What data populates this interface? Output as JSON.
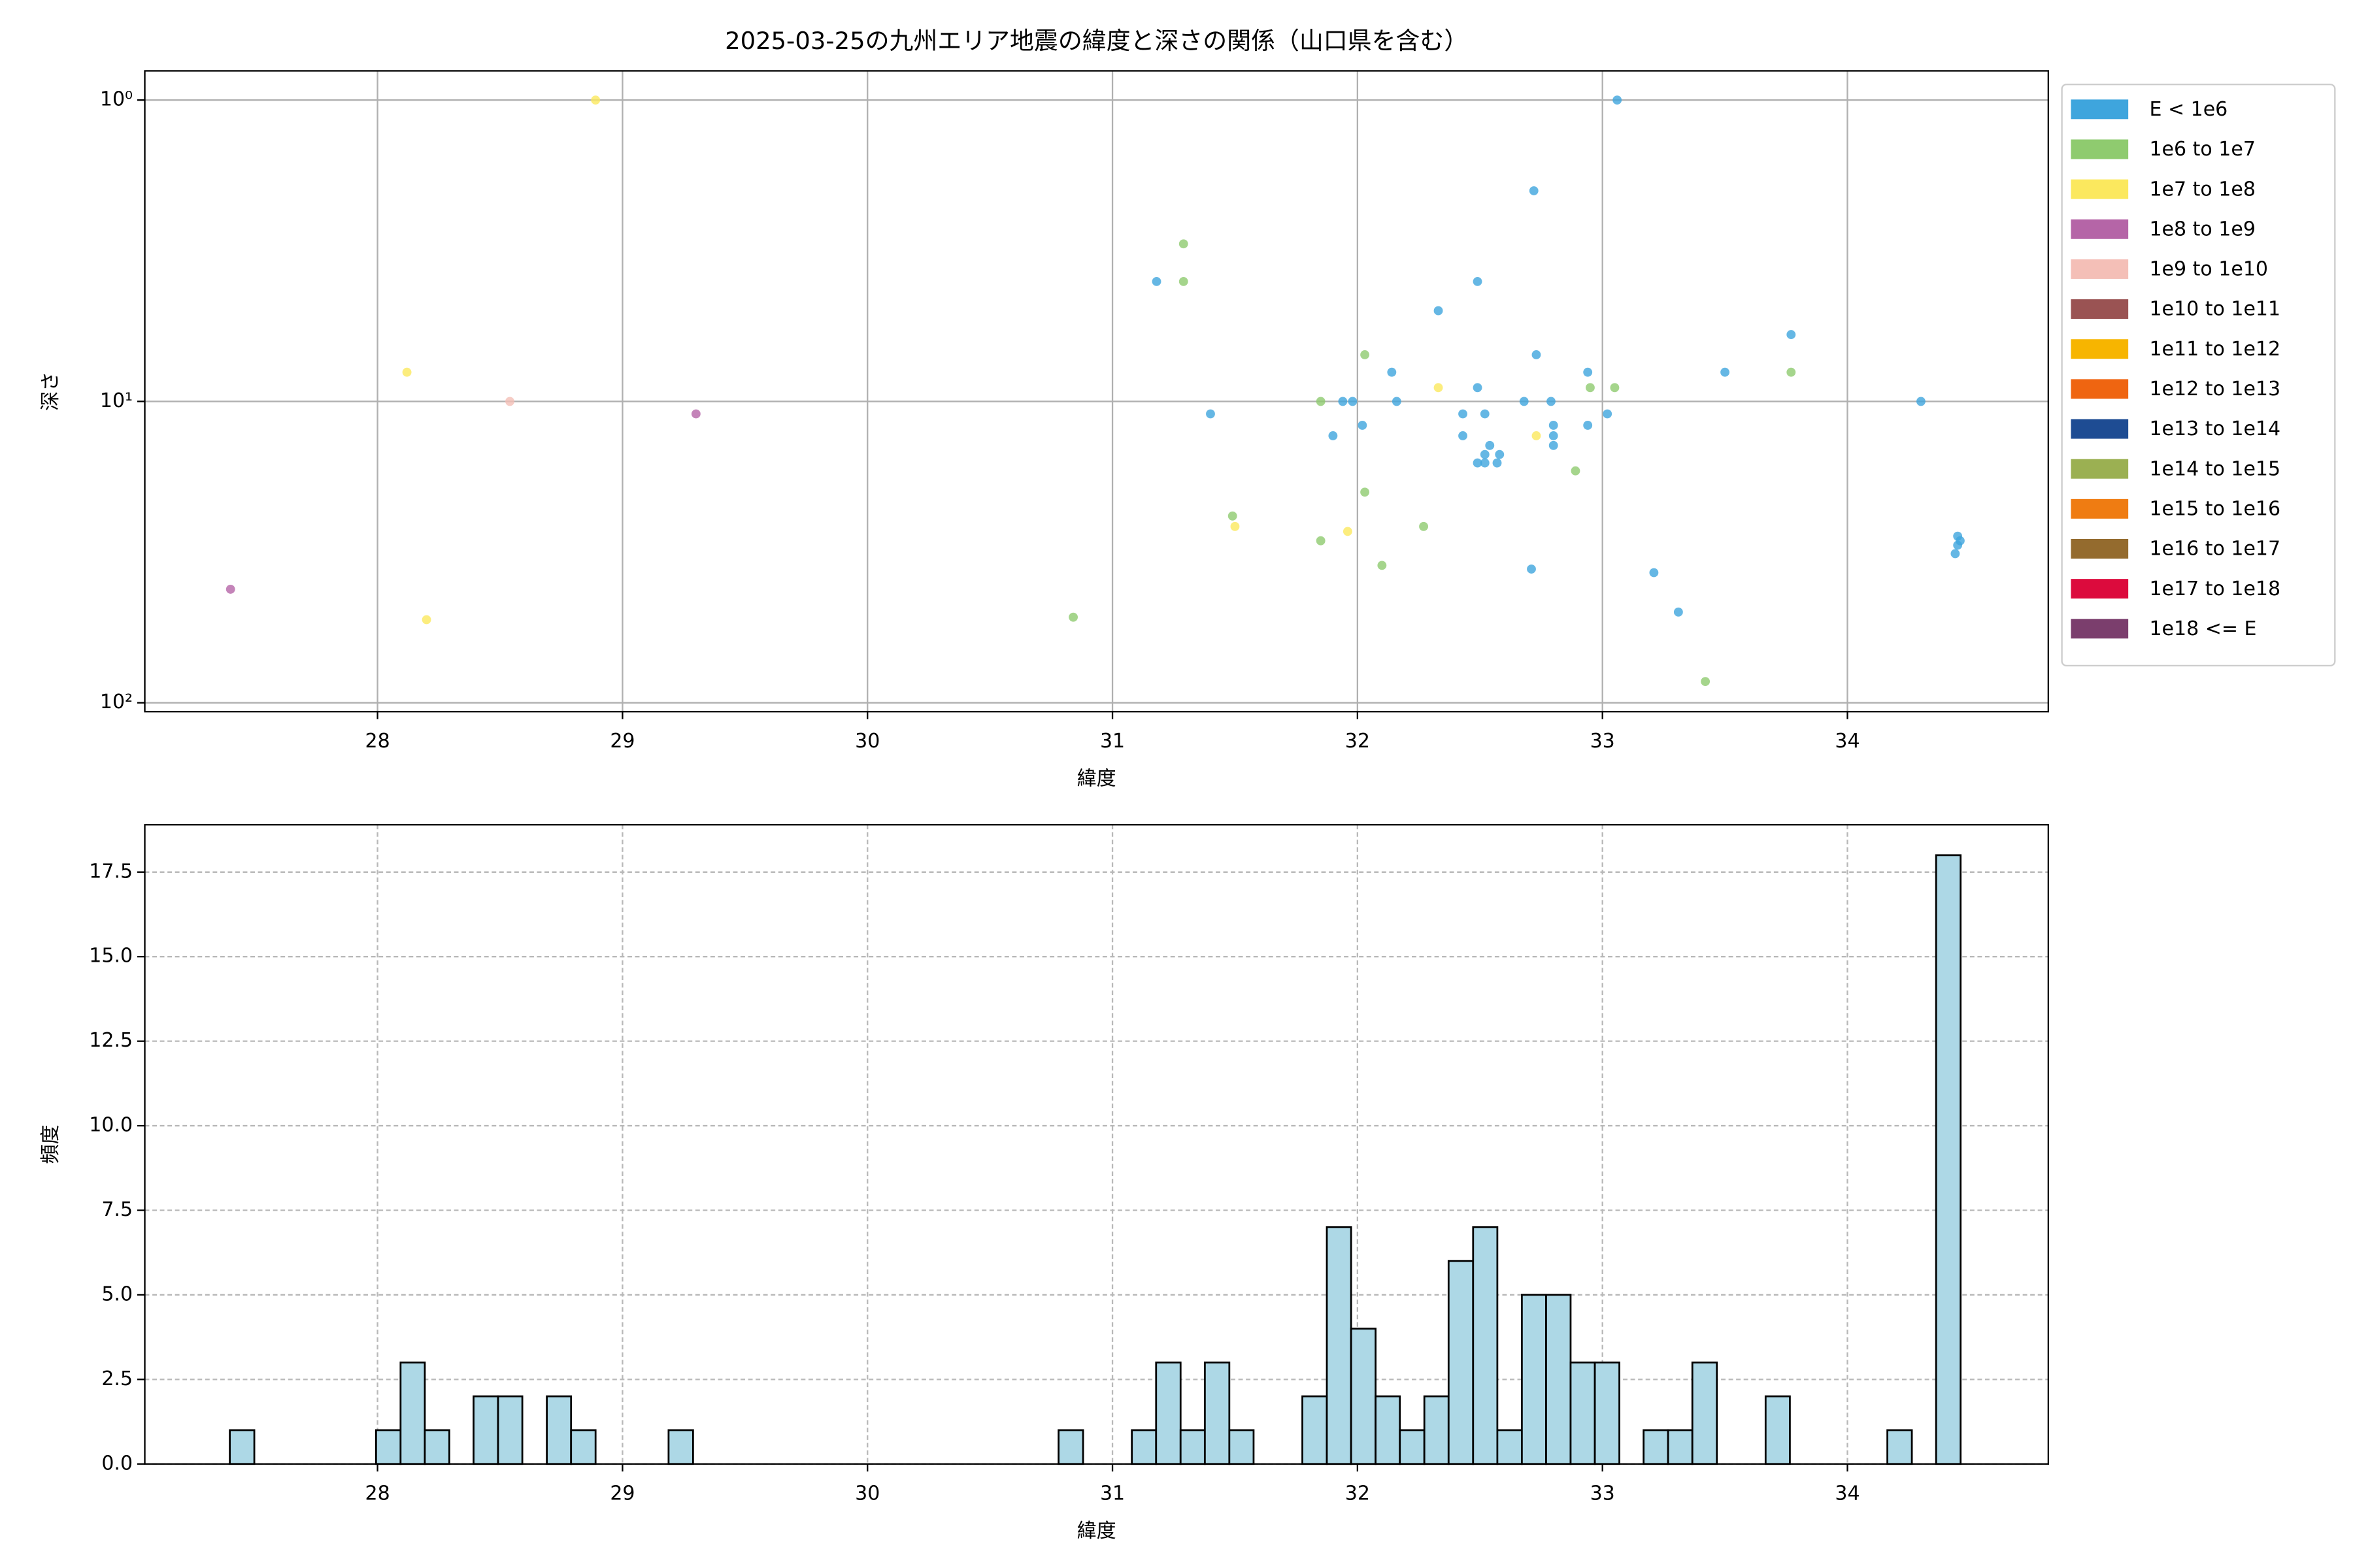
{
  "chart_data": [
    {
      "type": "scatter",
      "title": "2025-03-25の九州エリア地震の緯度と深さの関係（山口県を含む）",
      "x_label": "緯度",
      "y_label": "深さ",
      "xlim": [
        27.05,
        34.82
      ],
      "xticks": [
        28,
        29,
        30,
        31,
        32,
        33,
        34
      ],
      "ylim": [
        107,
        0.8
      ],
      "ylog": true,
      "yticks": [
        {
          "value": 1,
          "label": "10⁰"
        },
        {
          "value": 10,
          "label": "10¹"
        },
        {
          "value": 100,
          "label": "10²"
        }
      ],
      "grid": true,
      "legend": "outside right",
      "series": [
        {
          "name": "E < 1e6",
          "color": "#3ea5dd",
          "x": [
            33.06,
            32.72,
            31.18,
            32.49,
            32.33,
            33.77,
            32.73,
            32.14,
            32.94,
            33.5,
            32.49,
            31.94,
            31.98,
            32.16,
            32.68,
            32.79,
            34.3,
            31.4,
            32.43,
            32.52,
            33.02,
            32.02,
            32.94,
            32.8,
            31.9,
            32.43,
            32.8,
            32.8,
            32.54,
            32.52,
            32.58,
            32.49,
            32.52,
            32.57,
            32.71,
            33.21,
            33.31,
            34.45,
            34.45,
            34.44,
            34.46
          ],
          "values": [
            1,
            2,
            4,
            4,
            5,
            6,
            7,
            8,
            8,
            8,
            9,
            10,
            10,
            10,
            10,
            10,
            10,
            11,
            11,
            11,
            11,
            12,
            12,
            12,
            13,
            13,
            13,
            14,
            14,
            15,
            15,
            16,
            16,
            16,
            36,
            37,
            50,
            28,
            30,
            32,
            29
          ]
        },
        {
          "name": "1e6 to 1e7",
          "color": "#8fcb6f",
          "x": [
            31.29,
            31.29,
            32.03,
            33.77,
            31.85,
            32.95,
            33.05,
            32.89,
            32.03,
            31.49,
            32.27,
            31.85,
            32.1,
            30.84,
            33.42
          ],
          "values": [
            3,
            4,
            7,
            8,
            10,
            9,
            9,
            17,
            20,
            24,
            26,
            29,
            35,
            52,
            85
          ]
        },
        {
          "name": "1e7 to 1e8",
          "color": "#fbe85e",
          "x": [
            28.89,
            28.12,
            32.33,
            32.73,
            31.5,
            31.96,
            28.2
          ],
          "values": [
            1,
            8,
            9,
            13,
            26,
            27,
            53
          ]
        },
        {
          "name": "1e8 to 1e9",
          "color": "#b565a7",
          "x": [
            29.3,
            27.4
          ],
          "values": [
            11,
            42
          ]
        },
        {
          "name": "1e9 to 1e10",
          "color": "#f4bfb7",
          "x": [
            28.54
          ],
          "values": [
            10
          ]
        },
        {
          "name": "1e10 to 1e11",
          "color": "#9a5353",
          "x": [],
          "values": []
        },
        {
          "name": "1e11 to 1e12",
          "color": "#f7b500",
          "x": [],
          "values": []
        },
        {
          "name": "1e12 to 1e13",
          "color": "#ef6511",
          "x": [],
          "values": []
        },
        {
          "name": "1e13 to 1e14",
          "color": "#1e4c93",
          "x": [],
          "values": []
        },
        {
          "name": "1e14 to 1e15",
          "color": "#9bb052",
          "x": [],
          "values": []
        },
        {
          "name": "1e15 to 1e16",
          "color": "#ef7c12",
          "x": [],
          "values": []
        },
        {
          "name": "1e16 to 1e17",
          "color": "#946b2e",
          "x": [],
          "values": []
        },
        {
          "name": "1e17 to 1e18",
          "color": "#dc0b3d",
          "x": [],
          "values": []
        },
        {
          "name": "1e18 <= E",
          "color": "#7b3e6d",
          "x": [],
          "values": []
        }
      ]
    },
    {
      "type": "histogram",
      "x_label": "緯度",
      "y_label": "頻度",
      "xlim": [
        27.05,
        34.82
      ],
      "xticks": [
        28,
        29,
        30,
        31,
        32,
        33,
        34
      ],
      "ylim": [
        0,
        18.9
      ],
      "yticks": [
        {
          "value": 0,
          "label": "0.0"
        },
        {
          "value": 2.5,
          "label": "2.5"
        },
        {
          "value": 5,
          "label": "5.0"
        },
        {
          "value": 7.5,
          "label": "7.5"
        },
        {
          "value": 10,
          "label": "10.0"
        },
        {
          "value": 12.5,
          "label": "12.5"
        },
        {
          "value": 15,
          "label": "15.0"
        },
        {
          "value": 17.5,
          "label": "17.5"
        }
      ],
      "grid": "dashed",
      "color": "#add8e6",
      "edgecolor": "#000000",
      "bins": [
        27.397,
        27.497,
        27.596,
        27.696,
        27.795,
        27.895,
        27.994,
        28.094,
        28.193,
        28.293,
        28.392,
        28.492,
        28.591,
        28.691,
        28.79,
        28.89,
        28.989,
        29.089,
        29.188,
        29.288,
        29.387,
        29.487,
        29.586,
        29.686,
        29.785,
        29.885,
        29.984,
        30.084,
        30.183,
        30.283,
        30.382,
        30.482,
        30.581,
        30.681,
        30.78,
        30.88,
        30.979,
        31.079,
        31.178,
        31.278,
        31.377,
        31.477,
        31.576,
        31.676,
        31.775,
        31.875,
        31.974,
        32.074,
        32.173,
        32.273,
        32.372,
        32.472,
        32.571,
        32.671,
        32.77,
        32.87,
        32.969,
        33.069,
        33.168,
        33.268,
        33.367,
        33.467,
        33.566,
        33.666,
        33.765,
        33.865,
        33.964,
        34.064,
        34.163,
        34.263,
        34.362,
        34.462
      ],
      "values": [
        1,
        0,
        0,
        0,
        0,
        0,
        1,
        3,
        1,
        0,
        2,
        2,
        0,
        2,
        1,
        0,
        0,
        0,
        1,
        0,
        0,
        0,
        0,
        0,
        0,
        0,
        0,
        0,
        0,
        0,
        0,
        0,
        0,
        0,
        1,
        0,
        0,
        1,
        3,
        1,
        3,
        1,
        0,
        0,
        2,
        7,
        4,
        2,
        1,
        2,
        6,
        7,
        1,
        5,
        5,
        3,
        3,
        0,
        1,
        1,
        3,
        0,
        0,
        2,
        0,
        0,
        0,
        0,
        1,
        0,
        18
      ]
    }
  ]
}
